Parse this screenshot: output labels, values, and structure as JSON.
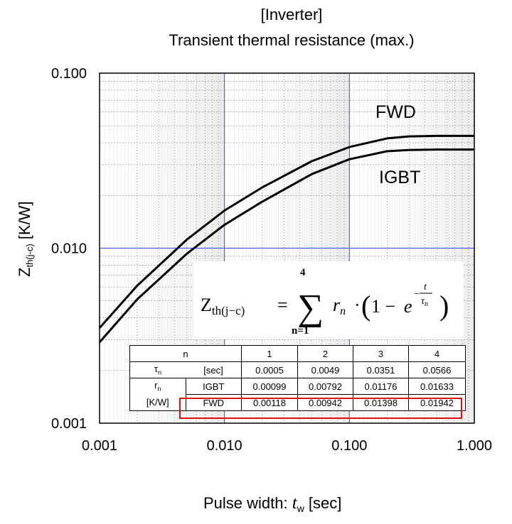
{
  "title_line1": "[Inverter]",
  "title_line2": "Transient thermal resistance (max.)",
  "chart_data": {
    "type": "line",
    "title": "[Inverter] Transient thermal resistance (max.)",
    "xlabel_text": "Pulse width: ",
    "xlabel_var": "t",
    "xlabel_sub": "w",
    "xlabel_unit": " [sec]",
    "ylabel_var": "Z",
    "ylabel_sub": "th(j-c)",
    "ylabel_unit": " [K/W]",
    "xscale": "log",
    "yscale": "log",
    "xlim": [
      0.001,
      1.0
    ],
    "ylim": [
      0.001,
      0.1
    ],
    "x_tick_labels": [
      "0.001",
      "0.010",
      "0.100",
      "1.000"
    ],
    "y_tick_labels": [
      "0.001",
      "0.010",
      "0.100"
    ],
    "grid": true,
    "series": [
      {
        "name": "FWD",
        "color": "#000000",
        "x": [
          0.001,
          0.002,
          0.005,
          0.01,
          0.02,
          0.05,
          0.1,
          0.2,
          0.3,
          0.5,
          1.0
        ],
        "y": [
          0.0035,
          0.0061,
          0.0112,
          0.0164,
          0.0222,
          0.0314,
          0.0378,
          0.0424,
          0.0435,
          0.0438,
          0.0438
        ]
      },
      {
        "name": "IGBT",
        "color": "#000000",
        "x": [
          0.001,
          0.002,
          0.005,
          0.01,
          0.02,
          0.05,
          0.1,
          0.2,
          0.3,
          0.5,
          1.0
        ],
        "y": [
          0.0029,
          0.0051,
          0.0093,
          0.0136,
          0.0184,
          0.0265,
          0.0322,
          0.0358,
          0.0364,
          0.0366,
          0.0366
        ]
      }
    ],
    "formula": {
      "lhs": "Z",
      "lhs_sub": "th(j−c)",
      "equals": "=",
      "sum_upper": "4",
      "sum_lower": "n=1",
      "term_r": "r",
      "term_r_sub": "n",
      "dot": "·",
      "paren_open": "(",
      "one_minus": "1 − ",
      "exp_base": "e",
      "exp_minus": "−",
      "exp_num": "t",
      "exp_den": "τ",
      "exp_den_sub": "n",
      "paren_close": ")"
    },
    "table": {
      "header_label": "n",
      "columns": [
        "1",
        "2",
        "3",
        "4"
      ],
      "tau_symbol": "τ",
      "tau_sub": "n",
      "tau_unit": "[sec]",
      "tau_values": [
        "0.0005",
        "0.0049",
        "0.0351",
        "0.0566"
      ],
      "r_symbol": "r",
      "r_sub": "n",
      "r_unit": "[K/W]",
      "igbt_label": "IGBT",
      "igbt_values": [
        "0.00099",
        "0.00792",
        "0.01176",
        "0.01633"
      ],
      "fwd_label": "FWD",
      "fwd_values": [
        "0.00118",
        "0.00942",
        "0.01398",
        "0.01942"
      ]
    },
    "highlight_color": "#dd1111",
    "grid_major_color": "#3344ee",
    "grid_minor_color": "#8c8c8c"
  }
}
